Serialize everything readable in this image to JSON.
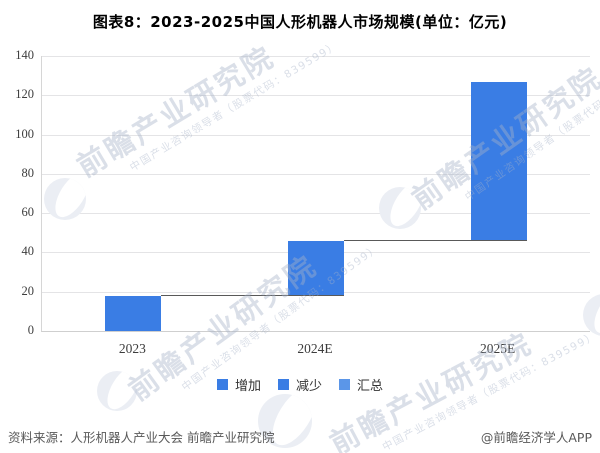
{
  "title": "图表8：2023-2025中国人形机器人市场规模(单位：亿元)",
  "chart_data": {
    "type": "bar",
    "subtype": "waterfall",
    "title": "图表8：2023-2025中国人形机器人市场规模(单位：亿元)",
    "unit": "亿元",
    "categories": [
      "2023",
      "2024E",
      "2025E"
    ],
    "bar_starts": [
      0,
      18,
      46
    ],
    "bar_ends": [
      18,
      46,
      127
    ],
    "increments": [
      18,
      28,
      81
    ],
    "ylim": [
      0,
      140
    ],
    "yticks": [
      0,
      20,
      40,
      60,
      80,
      100,
      120,
      140
    ],
    "grid": true,
    "legend_position": "bottom",
    "legend": [
      {
        "label": "增加",
        "color": "#3a7de4"
      },
      {
        "label": "减少",
        "color": "#3a7de4"
      },
      {
        "label": "汇总",
        "color": "#5b96e8"
      }
    ],
    "bar_color": "#3a7de4",
    "connector_color": "#595959",
    "grid_color": "#e4e4e6"
  },
  "footer": {
    "source": "资料来源：人形机器人产业大会 前瞻产业研究院",
    "credit": "@前瞻经济学人APP"
  },
  "watermark": {
    "text": "前瞻产业研究院",
    "subtext": "中国产业咨询领导者（股票代码：839599）"
  }
}
